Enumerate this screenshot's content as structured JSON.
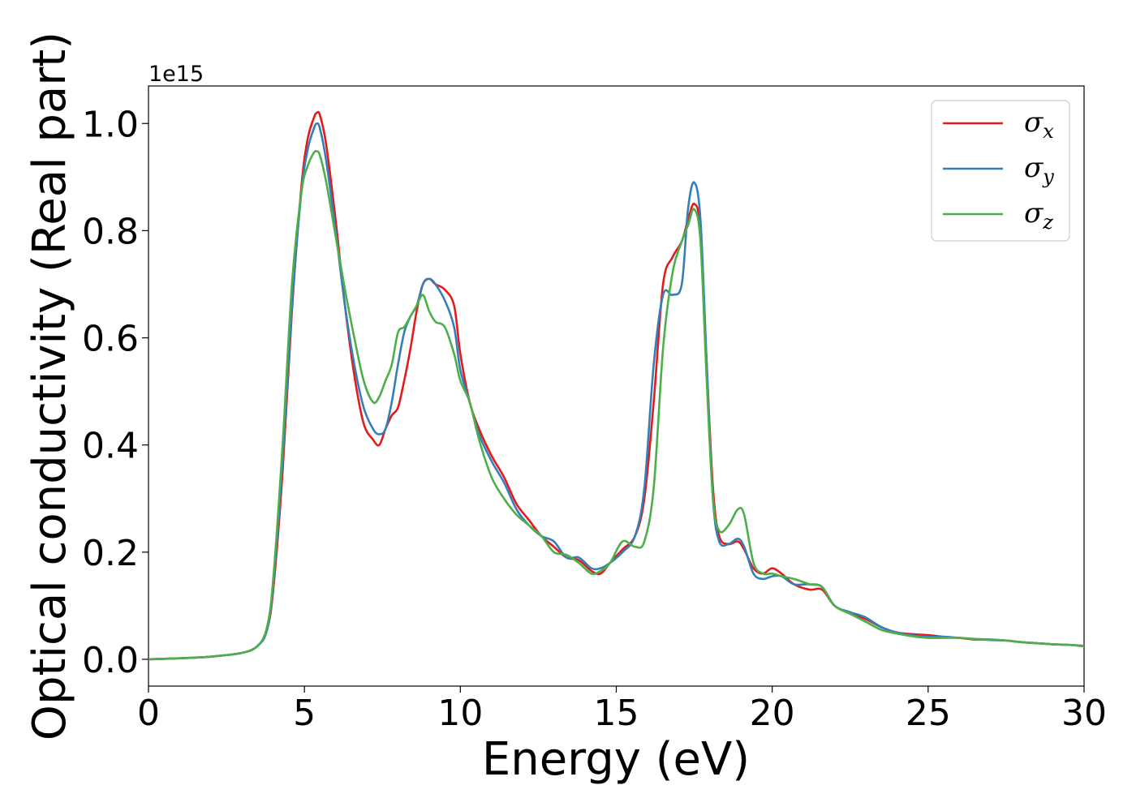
{
  "chart_data": {
    "type": "line",
    "xlabel": "Energy (eV)",
    "ylabel": "Optical conductivity (Real part)",
    "y_offset_text": "1e15",
    "xlim": [
      0,
      30
    ],
    "ylim": [
      -0.05,
      1.07
    ],
    "x_ticks": [
      0,
      5,
      10,
      15,
      20,
      25,
      30
    ],
    "x_tick_labels": [
      "0",
      "5",
      "10",
      "15",
      "20",
      "25",
      "30"
    ],
    "y_ticks": [
      0.0,
      0.2,
      0.4,
      0.6,
      0.8,
      1.0
    ],
    "y_tick_labels": [
      "0.0",
      "0.2",
      "0.4",
      "0.6",
      "0.8",
      "1.0"
    ],
    "grid": false,
    "legend_position": "top-right",
    "y_scale_factor": 1000000000000000.0,
    "series": [
      {
        "name": "σx",
        "sub": "x",
        "color": "#e41a1c",
        "x": [
          0,
          1,
          2,
          3,
          3.5,
          3.8,
          4.0,
          4.3,
          4.6,
          4.9,
          5.1,
          5.3,
          5.4,
          5.5,
          5.7,
          6.0,
          6.3,
          6.6,
          6.9,
          7.2,
          7.4,
          7.6,
          7.8,
          8.0,
          8.2,
          8.4,
          8.6,
          8.8,
          9.0,
          9.2,
          9.5,
          9.8,
          10.0,
          10.3,
          10.6,
          11.0,
          11.4,
          11.8,
          12.2,
          12.6,
          13.0,
          13.4,
          13.8,
          14.2,
          14.5,
          14.8,
          15.2,
          15.6,
          15.9,
          16.2,
          16.5,
          16.8,
          17.1,
          17.3,
          17.5,
          17.7,
          17.9,
          18.1,
          18.3,
          18.6,
          18.9,
          19.1,
          19.4,
          19.7,
          20.0,
          20.3,
          20.7,
          21.2,
          21.6,
          22.0,
          22.5,
          23.0,
          23.5,
          24.0,
          24.5,
          25.0,
          25.5,
          26.0,
          26.5,
          27.0,
          27.5,
          28.0,
          28.5,
          29.0,
          29.5,
          30.0
        ],
        "y": [
          0.0,
          0.002,
          0.005,
          0.012,
          0.025,
          0.055,
          0.13,
          0.35,
          0.65,
          0.88,
          0.97,
          1.01,
          1.02,
          1.015,
          0.96,
          0.82,
          0.66,
          0.53,
          0.44,
          0.41,
          0.4,
          0.43,
          0.455,
          0.47,
          0.52,
          0.58,
          0.65,
          0.7,
          0.71,
          0.7,
          0.69,
          0.66,
          0.57,
          0.48,
          0.43,
          0.38,
          0.34,
          0.29,
          0.26,
          0.23,
          0.21,
          0.19,
          0.185,
          0.165,
          0.16,
          0.18,
          0.205,
          0.23,
          0.3,
          0.48,
          0.7,
          0.75,
          0.78,
          0.82,
          0.85,
          0.8,
          0.55,
          0.32,
          0.23,
          0.215,
          0.22,
          0.205,
          0.17,
          0.16,
          0.17,
          0.16,
          0.14,
          0.13,
          0.13,
          0.1,
          0.085,
          0.075,
          0.06,
          0.05,
          0.047,
          0.045,
          0.042,
          0.04,
          0.037,
          0.037,
          0.035,
          0.032,
          0.03,
          0.028,
          0.027,
          0.025
        ]
      },
      {
        "name": "σy",
        "sub": "y",
        "color": "#377eb8",
        "x": [
          0,
          1,
          2,
          3,
          3.5,
          3.8,
          4.0,
          4.3,
          4.6,
          4.9,
          5.1,
          5.3,
          5.4,
          5.5,
          5.7,
          6.0,
          6.3,
          6.6,
          6.9,
          7.2,
          7.4,
          7.6,
          7.8,
          8.0,
          8.2,
          8.4,
          8.6,
          8.8,
          9.0,
          9.2,
          9.5,
          9.8,
          10.0,
          10.3,
          10.6,
          11.0,
          11.4,
          11.8,
          12.2,
          12.6,
          13.0,
          13.4,
          13.8,
          14.2,
          14.5,
          14.8,
          15.2,
          15.6,
          15.9,
          16.2,
          16.5,
          16.8,
          17.1,
          17.3,
          17.5,
          17.7,
          17.9,
          18.1,
          18.3,
          18.6,
          18.9,
          19.1,
          19.4,
          19.7,
          20.0,
          20.3,
          20.7,
          21.2,
          21.6,
          22.0,
          22.5,
          23.0,
          23.5,
          24.0,
          24.5,
          25.0,
          25.5,
          26.0,
          26.5,
          27.0,
          27.5,
          28.0,
          28.5,
          29.0,
          29.5,
          30.0
        ],
        "y": [
          0.0,
          0.002,
          0.005,
          0.012,
          0.025,
          0.055,
          0.14,
          0.37,
          0.66,
          0.87,
          0.95,
          0.99,
          1.0,
          0.99,
          0.93,
          0.8,
          0.66,
          0.55,
          0.47,
          0.43,
          0.42,
          0.43,
          0.48,
          0.55,
          0.61,
          0.64,
          0.66,
          0.7,
          0.71,
          0.7,
          0.67,
          0.62,
          0.54,
          0.48,
          0.42,
          0.37,
          0.33,
          0.28,
          0.25,
          0.23,
          0.22,
          0.19,
          0.19,
          0.17,
          0.17,
          0.18,
          0.2,
          0.23,
          0.32,
          0.55,
          0.68,
          0.68,
          0.7,
          0.84,
          0.89,
          0.82,
          0.55,
          0.3,
          0.22,
          0.215,
          0.225,
          0.21,
          0.16,
          0.15,
          0.155,
          0.155,
          0.14,
          0.14,
          0.135,
          0.1,
          0.088,
          0.078,
          0.06,
          0.05,
          0.045,
          0.042,
          0.042,
          0.04,
          0.038,
          0.036,
          0.035,
          0.032,
          0.03,
          0.028,
          0.027,
          0.025
        ]
      },
      {
        "name": "σz",
        "sub": "z",
        "color": "#4daf4a",
        "x": [
          0,
          1,
          2,
          3,
          3.5,
          3.8,
          4.0,
          4.3,
          4.6,
          4.9,
          5.1,
          5.3,
          5.4,
          5.5,
          5.7,
          6.0,
          6.3,
          6.6,
          6.9,
          7.2,
          7.4,
          7.6,
          7.8,
          8.0,
          8.2,
          8.4,
          8.6,
          8.8,
          9.0,
          9.2,
          9.5,
          9.8,
          10.0,
          10.3,
          10.6,
          11.0,
          11.4,
          11.8,
          12.2,
          12.6,
          13.0,
          13.4,
          13.8,
          14.2,
          14.5,
          14.8,
          15.2,
          15.6,
          15.9,
          16.2,
          16.5,
          16.8,
          17.1,
          17.3,
          17.5,
          17.7,
          17.9,
          18.1,
          18.3,
          18.6,
          18.9,
          19.1,
          19.4,
          19.7,
          20.0,
          20.3,
          20.7,
          21.2,
          21.6,
          22.0,
          22.5,
          23.0,
          23.5,
          24.0,
          24.5,
          25.0,
          25.5,
          26.0,
          26.5,
          27.0,
          27.5,
          28.0,
          28.5,
          29.0,
          29.5,
          30.0
        ],
        "y": [
          0.0,
          0.002,
          0.005,
          0.012,
          0.025,
          0.06,
          0.15,
          0.4,
          0.7,
          0.87,
          0.92,
          0.945,
          0.948,
          0.94,
          0.89,
          0.79,
          0.69,
          0.6,
          0.52,
          0.48,
          0.49,
          0.52,
          0.55,
          0.61,
          0.62,
          0.64,
          0.66,
          0.68,
          0.65,
          0.63,
          0.62,
          0.57,
          0.52,
          0.48,
          0.41,
          0.34,
          0.3,
          0.27,
          0.25,
          0.23,
          0.2,
          0.195,
          0.18,
          0.16,
          0.165,
          0.18,
          0.22,
          0.21,
          0.22,
          0.32,
          0.58,
          0.72,
          0.78,
          0.81,
          0.84,
          0.78,
          0.52,
          0.3,
          0.24,
          0.25,
          0.28,
          0.27,
          0.18,
          0.16,
          0.16,
          0.155,
          0.15,
          0.14,
          0.135,
          0.1,
          0.085,
          0.07,
          0.055,
          0.048,
          0.043,
          0.04,
          0.04,
          0.04,
          0.038,
          0.037,
          0.035,
          0.032,
          0.03,
          0.028,
          0.027,
          0.024
        ]
      }
    ]
  }
}
